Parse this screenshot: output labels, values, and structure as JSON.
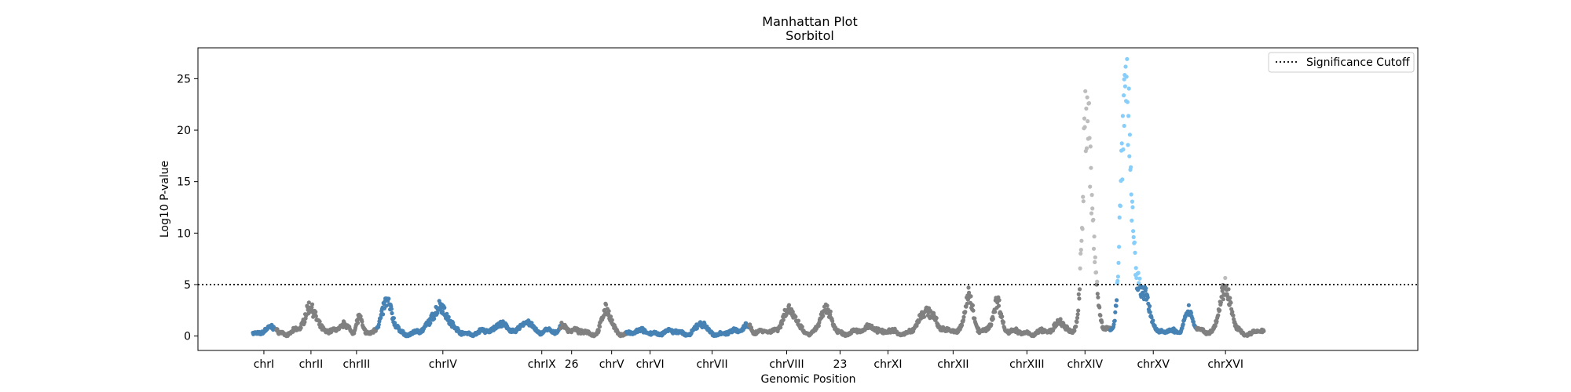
{
  "chart_data": {
    "type": "scatter",
    "title": "Manhattan Plot",
    "subtitle": "Sorbitol",
    "xlabel": "Genomic Position",
    "ylabel": "Log10 P-value",
    "ylim": [
      -1.4,
      28.0
    ],
    "xlim": [
      0,
      1554
    ],
    "yticks": [
      0,
      5,
      10,
      15,
      20,
      25
    ],
    "significance_cutoff": 5,
    "legend": {
      "position": "top-right",
      "entries": [
        "Significance Cutoff"
      ]
    },
    "grid": false,
    "colors": {
      "blue": "#4682b4",
      "gray": "#808080",
      "light_gray": "#bdbdbd",
      "light_blue": "#87cefa",
      "cutoff": "#000000"
    },
    "chromosomes": [
      {
        "label": "chrI",
        "tick": 84,
        "start": 70,
        "end": 98,
        "color": "blue"
      },
      {
        "label": "chrII",
        "tick": 144,
        "start": 100,
        "end": 170,
        "color": "gray"
      },
      {
        "label": "chrIII",
        "tick": 202,
        "start": 170,
        "end": 228,
        "color": "gray"
      },
      {
        "label": "",
        "tick": null,
        "start": 228,
        "end": 260,
        "color": "blue"
      },
      {
        "label": "chrIV",
        "tick": 312,
        "start": 260,
        "end": 364,
        "color": "blue"
      },
      {
        "label": "chrIX",
        "tick": 438,
        "start": 364,
        "end": 462,
        "color": "blue"
      },
      {
        "label": "26",
        "tick": 476,
        "start": 462,
        "end": 512,
        "color": "gray"
      },
      {
        "label": "chrV",
        "tick": 527,
        "start": 512,
        "end": 546,
        "color": "gray"
      },
      {
        "label": "chrVI",
        "tick": 576,
        "start": 546,
        "end": 604,
        "color": "blue"
      },
      {
        "label": "chrVII",
        "tick": 655,
        "start": 604,
        "end": 702,
        "color": "blue"
      },
      {
        "label": "chrVIII",
        "tick": 750,
        "start": 702,
        "end": 780,
        "color": "gray"
      },
      {
        "label": "23",
        "tick": 818,
        "start": 780,
        "end": 850,
        "color": "gray"
      },
      {
        "label": "chrXI",
        "tick": 879,
        "start": 850,
        "end": 912,
        "color": "gray"
      },
      {
        "label": "chrXII",
        "tick": 962,
        "start": 912,
        "end": 1010,
        "color": "gray"
      },
      {
        "label": "chrXIII",
        "tick": 1056,
        "start": 1010,
        "end": 1110,
        "color": "gray"
      },
      {
        "label": "chrXIV",
        "tick": 1130,
        "start": 1110,
        "end": 1162,
        "color": "gray"
      },
      {
        "label": "",
        "tick": null,
        "start": 1162,
        "end": 1180,
        "color": "blue"
      },
      {
        "label": "chrXV",
        "tick": 1217,
        "start": 1180,
        "end": 1272,
        "color": "blue"
      },
      {
        "label": "chrXVI",
        "tick": 1309,
        "start": 1272,
        "end": 1358,
        "color": "gray"
      }
    ],
    "peaks": [
      {
        "x": 96,
        "w": 4,
        "h": 0.5
      },
      {
        "x": 144,
        "w": 7,
        "h": 2.6
      },
      {
        "x": 186,
        "w": 5,
        "h": 1.0
      },
      {
        "x": 205,
        "w": 3,
        "h": 1.3
      },
      {
        "x": 240,
        "w": 7,
        "h": 2.8
      },
      {
        "x": 308,
        "w": 9,
        "h": 2.7
      },
      {
        "x": 386,
        "w": 6,
        "h": 1.1
      },
      {
        "x": 420,
        "w": 6,
        "h": 1.2
      },
      {
        "x": 466,
        "w": 5,
        "h": 0.8
      },
      {
        "x": 520,
        "w": 5,
        "h": 2.2
      },
      {
        "x": 640,
        "w": 5,
        "h": 0.8
      },
      {
        "x": 700,
        "w": 5,
        "h": 0.8
      },
      {
        "x": 752,
        "w": 8,
        "h": 2.2
      },
      {
        "x": 800,
        "w": 7,
        "h": 2.1
      },
      {
        "x": 858,
        "w": 6,
        "h": 0.7
      },
      {
        "x": 930,
        "w": 10,
        "h": 2.1
      },
      {
        "x": 982,
        "w": 5,
        "h": 3.8
      },
      {
        "x": 1018,
        "w": 5,
        "h": 3.2
      },
      {
        "x": 1098,
        "w": 5,
        "h": 1.3
      },
      {
        "x": 1132,
        "w": 5,
        "h": 21.0
      },
      {
        "x": 1142,
        "w": 5,
        "h": 5.0
      },
      {
        "x": 1182,
        "w": 6,
        "h": 24.5
      },
      {
        "x": 1202,
        "w": 9,
        "h": 4.3
      },
      {
        "x": 1262,
        "w": 5,
        "h": 2.3
      },
      {
        "x": 1308,
        "w": 7,
        "h": 4.3
      }
    ],
    "baseline": 0.35,
    "point_spacing": 0.6
  }
}
